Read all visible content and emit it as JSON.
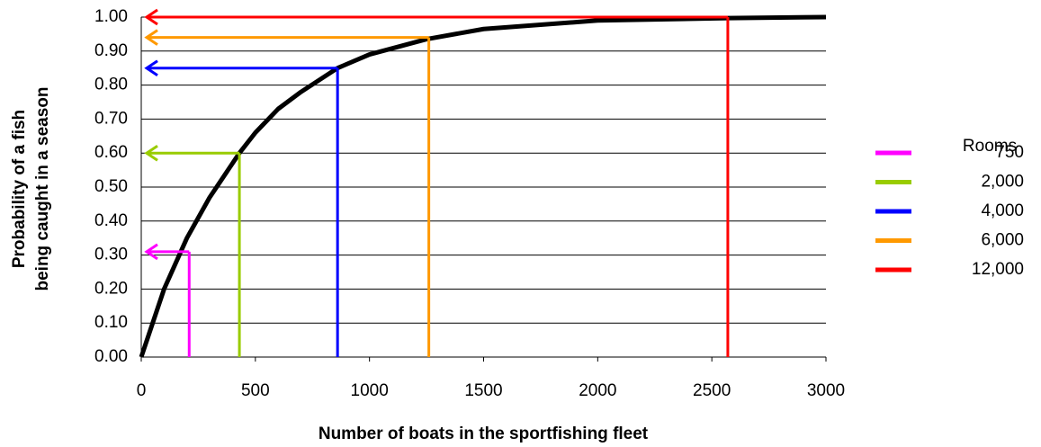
{
  "chart_data": {
    "type": "line",
    "xlabel": "Number of boats in the sportfishing fleet",
    "ylabel": [
      "Probability of a fish",
      "being caught in a season"
    ],
    "xlim": [
      0,
      3000
    ],
    "xticks": [
      0,
      500,
      1000,
      1500,
      2000,
      2500,
      3000
    ],
    "ylim": [
      0,
      1
    ],
    "yticks": [
      {
        "value": 0,
        "label": "0.00"
      },
      {
        "value": 0.1,
        "label": "0.10"
      },
      {
        "value": 0.2,
        "label": "0.20"
      },
      {
        "value": 0.3,
        "label": "0.30"
      },
      {
        "value": 0.4,
        "label": "0.40"
      },
      {
        "value": 0.5,
        "label": "0.50"
      },
      {
        "value": 0.6,
        "label": "0.60"
      },
      {
        "value": 0.7,
        "label": "0.70"
      },
      {
        "value": 0.8,
        "label": "0.80"
      },
      {
        "value": 0.9,
        "label": "0.90"
      },
      {
        "value": 1,
        "label": "1.00"
      }
    ],
    "grid": true,
    "curve": {
      "color": "#000000",
      "x": [
        0,
        50,
        100,
        200,
        300,
        430,
        500,
        600,
        700,
        860,
        1000,
        1250,
        1500,
        2000,
        2570,
        3000
      ],
      "values": [
        0,
        0.1,
        0.2,
        0.35,
        0.47,
        0.6,
        0.66,
        0.73,
        0.78,
        0.85,
        0.89,
        0.935,
        0.965,
        0.99,
        0.997,
        1.0
      ]
    },
    "legend_title": "Rooms",
    "legend": "right",
    "series": [
      {
        "name": "750",
        "color": "#ff00ff",
        "x": 210,
        "y": 0.31
      },
      {
        "name": "2,000",
        "color": "#99cc00",
        "x": 430,
        "y": 0.6
      },
      {
        "name": "4,000",
        "color": "#0000ff",
        "x": 860,
        "y": 0.85
      },
      {
        "name": "6,000",
        "color": "#ff9900",
        "x": 1260,
        "y": 0.94
      },
      {
        "name": "12,000",
        "color": "#ff0000",
        "x": 2570,
        "y": 1.0
      }
    ]
  }
}
